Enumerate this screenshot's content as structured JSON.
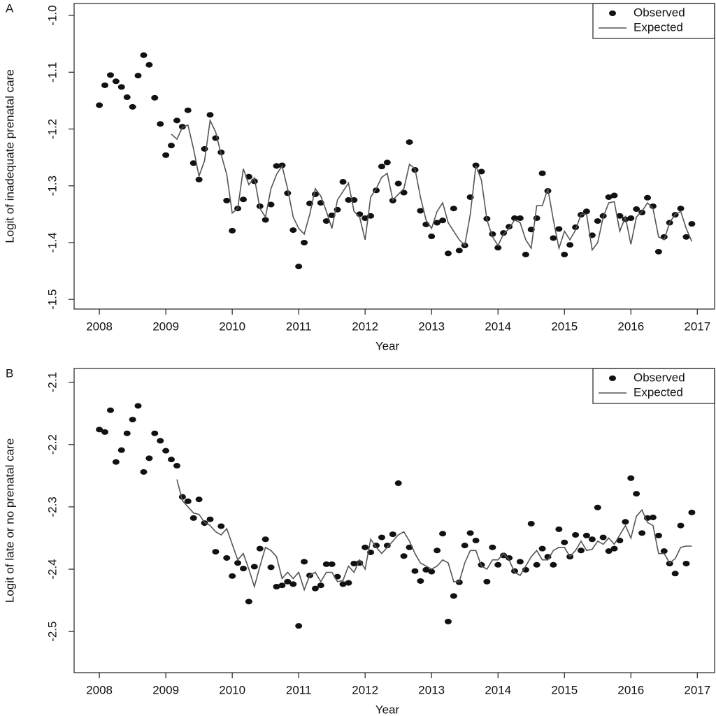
{
  "chart_data": [
    {
      "type": "scatter",
      "panel_label": "A",
      "xlabel": "Year",
      "ylabel": "Logit of inadequate prenatal care",
      "xlim": [
        2007.62,
        2017.26
      ],
      "xticks": [
        2008,
        2009,
        2010,
        2011,
        2012,
        2013,
        2014,
        2015,
        2016,
        2017
      ],
      "ylim": [
        -1.517,
        -0.979
      ],
      "yticks": [
        {
          "value": -1.0,
          "label": "-1.0"
        },
        -1.1,
        -1.2,
        -1.3,
        -1.4,
        -1.5
      ],
      "legend": "upper right",
      "x": [
        2008,
        2008.083,
        2008.167,
        2008.25,
        2008.333,
        2008.417,
        2008.5,
        2008.583,
        2008.667,
        2008.75,
        2008.833,
        2008.917,
        2009,
        2009.083,
        2009.167,
        2009.25,
        2009.333,
        2009.417,
        2009.5,
        2009.583,
        2009.667,
        2009.75,
        2009.833,
        2009.917,
        2010,
        2010.083,
        2010.167,
        2010.25,
        2010.333,
        2010.417,
        2010.5,
        2010.583,
        2010.667,
        2010.75,
        2010.833,
        2010.917,
        2011,
        2011.083,
        2011.167,
        2011.25,
        2011.333,
        2011.417,
        2011.5,
        2011.583,
        2011.667,
        2011.75,
        2011.833,
        2011.917,
        2012,
        2012.083,
        2012.167,
        2012.25,
        2012.333,
        2012.417,
        2012.5,
        2012.583,
        2012.667,
        2012.75,
        2012.833,
        2012.917,
        2013,
        2013.083,
        2013.167,
        2013.25,
        2013.333,
        2013.417,
        2013.5,
        2013.583,
        2013.667,
        2013.75,
        2013.833,
        2013.917,
        2014,
        2014.083,
        2014.167,
        2014.25,
        2014.333,
        2014.417,
        2014.5,
        2014.583,
        2014.667,
        2014.75,
        2014.833,
        2014.917,
        2015,
        2015.083,
        2015.167,
        2015.25,
        2015.333,
        2015.417,
        2015.5,
        2015.583,
        2015.667,
        2015.75,
        2015.833,
        2015.917,
        2016,
        2016.083,
        2016.167,
        2016.25,
        2016.333,
        2016.417,
        2016.5,
        2016.583,
        2016.667,
        2016.75,
        2016.833,
        2016.917
      ],
      "series": [
        {
          "name": "Observed",
          "type": "scatter",
          "color": "#111111",
          "values": [
            -1.158,
            -1.123,
            -1.105,
            -1.116,
            -1.126,
            -1.144,
            -1.161,
            -1.106,
            -1.07,
            -1.087,
            -1.145,
            -1.191,
            -1.246,
            -1.229,
            -1.185,
            -1.196,
            -1.167,
            -1.26,
            -1.289,
            -1.235,
            -1.175,
            -1.216,
            -1.241,
            -1.326,
            -1.379,
            -1.34,
            -1.324,
            -1.284,
            -1.292,
            -1.336,
            -1.36,
            -1.333,
            -1.265,
            -1.264,
            -1.313,
            -1.378,
            -1.442,
            -1.4,
            -1.331,
            -1.315,
            -1.33,
            -1.362,
            -1.352,
            -1.342,
            -1.293,
            -1.325,
            -1.325,
            -1.35,
            -1.357,
            -1.353,
            -1.308,
            -1.266,
            -1.259,
            -1.326,
            -1.296,
            -1.312,
            -1.223,
            -1.272,
            -1.344,
            -1.368,
            -1.389,
            -1.365,
            -1.361,
            -1.419,
            -1.34,
            -1.414,
            -1.405,
            -1.32,
            -1.264,
            -1.275,
            -1.358,
            -1.385,
            -1.409,
            -1.383,
            -1.372,
            -1.357,
            -1.357,
            -1.421,
            -1.377,
            -1.357,
            -1.278,
            -1.309,
            -1.392,
            -1.376,
            -1.421,
            -1.404,
            -1.373,
            -1.351,
            -1.345,
            -1.387,
            -1.362,
            -1.353,
            -1.32,
            -1.317,
            -1.353,
            -1.359,
            -1.357,
            -1.341,
            -1.347,
            -1.321,
            -1.336,
            -1.416,
            -1.39,
            -1.365,
            -1.351,
            -1.34,
            -1.39,
            -1.367
          ]
        },
        {
          "name": "Expected",
          "type": "line",
          "color": "#555555",
          "values": [
            null,
            null,
            null,
            null,
            null,
            null,
            null,
            null,
            null,
            null,
            null,
            null,
            null,
            -1.209,
            -1.218,
            -1.197,
            -1.193,
            -1.235,
            -1.283,
            -1.256,
            -1.185,
            -1.205,
            -1.245,
            -1.28,
            -1.348,
            -1.34,
            -1.27,
            -1.298,
            -1.286,
            -1.34,
            -1.355,
            -1.305,
            -1.28,
            -1.265,
            -1.305,
            -1.355,
            -1.375,
            -1.385,
            -1.35,
            -1.305,
            -1.318,
            -1.345,
            -1.375,
            -1.325,
            -1.31,
            -1.295,
            -1.345,
            -1.355,
            -1.395,
            -1.32,
            -1.305,
            -1.285,
            -1.278,
            -1.325,
            -1.315,
            -1.305,
            -1.262,
            -1.27,
            -1.32,
            -1.36,
            -1.375,
            -1.345,
            -1.33,
            -1.365,
            -1.38,
            -1.395,
            -1.405,
            -1.35,
            -1.265,
            -1.29,
            -1.36,
            -1.39,
            -1.405,
            -1.385,
            -1.375,
            -1.36,
            -1.365,
            -1.395,
            -1.41,
            -1.335,
            -1.335,
            -1.305,
            -1.36,
            -1.41,
            -1.38,
            -1.395,
            -1.378,
            -1.35,
            -1.35,
            -1.413,
            -1.4,
            -1.355,
            -1.33,
            -1.328,
            -1.38,
            -1.355,
            -1.403,
            -1.355,
            -1.345,
            -1.33,
            -1.34,
            -1.39,
            -1.395,
            -1.365,
            -1.35,
            -1.345,
            -1.375,
            -1.398
          ]
        }
      ]
    },
    {
      "type": "scatter",
      "panel_label": "B",
      "xlabel": "Year",
      "ylabel": "Logit of late or no prenatal care",
      "xlim": [
        2007.62,
        2017.26
      ],
      "xticks": [
        2008,
        2009,
        2010,
        2011,
        2012,
        2013,
        2014,
        2015,
        2016,
        2017
      ],
      "ylim": [
        -2.566,
        -2.078
      ],
      "yticks": [
        -2.1,
        -2.2,
        -2.3,
        -2.4,
        -2.5
      ],
      "legend": "upper right",
      "x": [
        2008,
        2008.083,
        2008.167,
        2008.25,
        2008.333,
        2008.417,
        2008.5,
        2008.583,
        2008.667,
        2008.75,
        2008.833,
        2008.917,
        2009,
        2009.083,
        2009.167,
        2009.25,
        2009.333,
        2009.417,
        2009.5,
        2009.583,
        2009.667,
        2009.75,
        2009.833,
        2009.917,
        2010,
        2010.083,
        2010.167,
        2010.25,
        2010.333,
        2010.417,
        2010.5,
        2010.583,
        2010.667,
        2010.75,
        2010.833,
        2010.917,
        2011,
        2011.083,
        2011.167,
        2011.25,
        2011.333,
        2011.417,
        2011.5,
        2011.583,
        2011.667,
        2011.75,
        2011.833,
        2011.917,
        2012,
        2012.083,
        2012.167,
        2012.25,
        2012.333,
        2012.417,
        2012.5,
        2012.583,
        2012.667,
        2012.75,
        2012.833,
        2012.917,
        2013,
        2013.083,
        2013.167,
        2013.25,
        2013.333,
        2013.417,
        2013.5,
        2013.583,
        2013.667,
        2013.75,
        2013.833,
        2013.917,
        2014,
        2014.083,
        2014.167,
        2014.25,
        2014.333,
        2014.417,
        2014.5,
        2014.583,
        2014.667,
        2014.75,
        2014.833,
        2014.917,
        2015,
        2015.083,
        2015.167,
        2015.25,
        2015.333,
        2015.417,
        2015.5,
        2015.583,
        2015.667,
        2015.75,
        2015.833,
        2015.917,
        2016,
        2016.083,
        2016.167,
        2016.25,
        2016.333,
        2016.417,
        2016.5,
        2016.583,
        2016.667,
        2016.75,
        2016.833,
        2016.917
      ],
      "series": [
        {
          "name": "Observed",
          "type": "scatter",
          "color": "#111111",
          "values": [
            -2.176,
            -2.18,
            -2.145,
            -2.228,
            -2.209,
            -2.182,
            -2.16,
            -2.138,
            -2.244,
            -2.222,
            -2.182,
            -2.194,
            -2.21,
            -2.224,
            -2.234,
            -2.284,
            -2.291,
            -2.318,
            -2.288,
            -2.326,
            -2.32,
            -2.372,
            -2.331,
            -2.382,
            -2.411,
            -2.39,
            -2.399,
            -2.452,
            -2.396,
            -2.367,
            -2.352,
            -2.397,
            -2.428,
            -2.426,
            -2.42,
            -2.424,
            -2.491,
            -2.388,
            -2.41,
            -2.431,
            -2.426,
            -2.392,
            -2.392,
            -2.412,
            -2.424,
            -2.422,
            -2.391,
            -2.39,
            -2.365,
            -2.373,
            -2.362,
            -2.349,
            -2.362,
            -2.344,
            -2.262,
            -2.379,
            -2.365,
            -2.403,
            -2.419,
            -2.401,
            -2.404,
            -2.37,
            -2.343,
            -2.484,
            -2.443,
            -2.421,
            -2.362,
            -2.342,
            -2.354,
            -2.393,
            -2.42,
            -2.365,
            -2.393,
            -2.378,
            -2.382,
            -2.403,
            -2.388,
            -2.401,
            -2.327,
            -2.393,
            -2.367,
            -2.38,
            -2.393,
            -2.336,
            -2.357,
            -2.38,
            -2.345,
            -2.37,
            -2.346,
            -2.352,
            -2.301,
            -2.349,
            -2.371,
            -2.367,
            -2.354,
            -2.324,
            -2.254,
            -2.279,
            -2.342,
            -2.318,
            -2.317,
            -2.346,
            -2.371,
            -2.391,
            -2.407,
            -2.33,
            -2.391,
            -2.309
          ]
        },
        {
          "name": "Expected",
          "type": "line",
          "color": "#555555",
          "values": [
            null,
            null,
            null,
            null,
            null,
            null,
            null,
            null,
            null,
            null,
            null,
            null,
            null,
            null,
            -2.256,
            -2.29,
            -2.3,
            -2.31,
            -2.312,
            -2.325,
            -2.33,
            -2.34,
            -2.345,
            -2.335,
            -2.36,
            -2.385,
            -2.375,
            -2.4,
            -2.428,
            -2.395,
            -2.365,
            -2.37,
            -2.38,
            -2.415,
            -2.405,
            -2.415,
            -2.405,
            -2.433,
            -2.41,
            -2.405,
            -2.42,
            -2.405,
            -2.405,
            -2.42,
            -2.418,
            -2.395,
            -2.405,
            -2.385,
            -2.4,
            -2.352,
            -2.365,
            -2.375,
            -2.365,
            -2.355,
            -2.345,
            -2.34,
            -2.355,
            -2.375,
            -2.39,
            -2.395,
            -2.4,
            -2.395,
            -2.385,
            -2.39,
            -2.42,
            -2.42,
            -2.39,
            -2.37,
            -2.37,
            -2.395,
            -2.4,
            -2.385,
            -2.385,
            -2.375,
            -2.385,
            -2.405,
            -2.41,
            -2.395,
            -2.38,
            -2.37,
            -2.385,
            -2.385,
            -2.37,
            -2.365,
            -2.365,
            -2.38,
            -2.37,
            -2.355,
            -2.37,
            -2.368,
            -2.355,
            -2.36,
            -2.35,
            -2.36,
            -2.345,
            -2.33,
            -2.35,
            -2.315,
            -2.305,
            -2.325,
            -2.33,
            -2.375,
            -2.375,
            -2.39,
            -2.383,
            -2.365,
            -2.363,
            -2.363
          ]
        }
      ]
    }
  ]
}
